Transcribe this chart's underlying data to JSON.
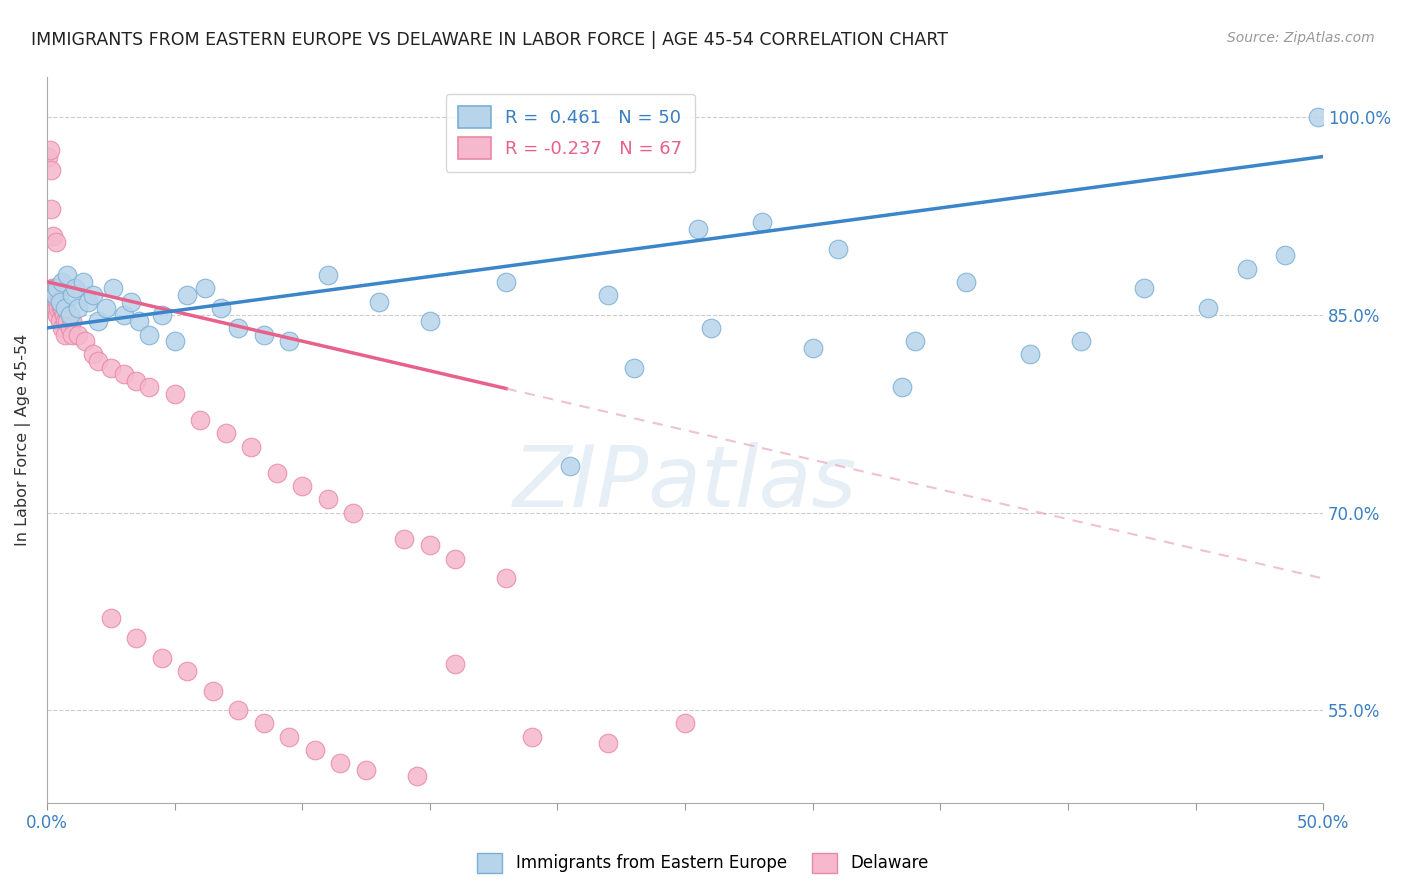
{
  "title": "IMMIGRANTS FROM EASTERN EUROPE VS DELAWARE IN LABOR FORCE | AGE 45-54 CORRELATION CHART",
  "source": "Source: ZipAtlas.com",
  "ylabel": "In Labor Force | Age 45-54",
  "xlim": [
    0.0,
    50.0
  ],
  "ylim": [
    48.0,
    103.0
  ],
  "x_ticks_show": [
    0.0,
    50.0
  ],
  "x_ticks_minor": [
    5.0,
    10.0,
    15.0,
    20.0,
    25.0,
    30.0,
    35.0,
    40.0,
    45.0
  ],
  "y_ticks": [
    55.0,
    70.0,
    85.0,
    100.0
  ],
  "blue_R": 0.461,
  "blue_N": 50,
  "pink_R": -0.237,
  "pink_N": 67,
  "blue_color": "#b8d4ea",
  "pink_color": "#f5b8cc",
  "blue_edge_color": "#7aafd4",
  "pink_edge_color": "#e888aa",
  "blue_line_color": "#3a86c8",
  "pink_line_color": "#e8618a",
  "pink_dash_color": "#e8a8bc",
  "legend_label_blue": "Immigrants from Eastern Europe",
  "legend_label_pink": "Delaware",
  "blue_x": [
    0.3,
    0.4,
    0.5,
    0.6,
    0.7,
    0.8,
    0.9,
    1.0,
    1.1,
    1.2,
    1.4,
    1.6,
    1.8,
    2.0,
    2.3,
    2.6,
    3.0,
    3.3,
    3.6,
    4.0,
    4.5,
    5.0,
    5.5,
    6.2,
    6.8,
    7.5,
    8.5,
    9.5,
    11.0,
    13.0,
    15.0,
    18.0,
    20.5,
    23.0,
    25.5,
    28.0,
    31.0,
    33.5,
    36.0,
    38.5,
    40.5,
    43.0,
    45.5,
    47.0,
    48.5,
    49.8,
    22.0,
    26.0,
    30.0,
    34.0
  ],
  "blue_y": [
    86.5,
    87.0,
    86.0,
    87.5,
    85.5,
    88.0,
    85.0,
    86.5,
    87.0,
    85.5,
    87.5,
    86.0,
    86.5,
    84.5,
    85.5,
    87.0,
    85.0,
    86.0,
    84.5,
    83.5,
    85.0,
    83.0,
    86.5,
    87.0,
    85.5,
    84.0,
    83.5,
    83.0,
    88.0,
    86.0,
    84.5,
    87.5,
    73.5,
    81.0,
    91.5,
    92.0,
    90.0,
    79.5,
    87.5,
    82.0,
    83.0,
    87.0,
    85.5,
    88.5,
    89.5,
    100.0,
    86.5,
    84.0,
    82.5,
    83.0
  ],
  "pink_x": [
    0.05,
    0.1,
    0.1,
    0.15,
    0.15,
    0.2,
    0.2,
    0.25,
    0.25,
    0.3,
    0.3,
    0.35,
    0.35,
    0.4,
    0.4,
    0.45,
    0.5,
    0.5,
    0.55,
    0.6,
    0.6,
    0.65,
    0.7,
    0.7,
    0.8,
    0.9,
    1.0,
    1.0,
    1.2,
    1.5,
    1.8,
    2.0,
    2.5,
    3.0,
    3.5,
    4.0,
    5.0,
    6.0,
    7.0,
    8.0,
    9.0,
    10.0,
    11.0,
    12.0,
    14.0,
    15.0,
    16.0,
    18.0,
    2.5,
    3.5,
    4.5,
    5.5,
    6.5,
    7.5,
    8.5,
    9.5,
    10.5,
    11.5,
    12.5,
    14.5,
    16.0,
    19.0,
    22.0,
    25.0,
    0.15,
    0.25,
    0.35
  ],
  "pink_y": [
    97.0,
    97.5,
    86.5,
    96.0,
    86.0,
    86.5,
    87.0,
    86.5,
    85.5,
    87.0,
    86.0,
    86.5,
    85.5,
    85.0,
    86.0,
    85.5,
    86.0,
    84.5,
    85.5,
    85.5,
    84.0,
    85.0,
    84.5,
    83.5,
    84.5,
    84.0,
    84.5,
    83.5,
    83.5,
    83.0,
    82.0,
    81.5,
    81.0,
    80.5,
    80.0,
    79.5,
    79.0,
    77.0,
    76.0,
    75.0,
    73.0,
    72.0,
    71.0,
    70.0,
    68.0,
    67.5,
    66.5,
    65.0,
    62.0,
    60.5,
    59.0,
    58.0,
    56.5,
    55.0,
    54.0,
    53.0,
    52.0,
    51.0,
    50.5,
    50.0,
    58.5,
    53.0,
    52.5,
    54.0,
    93.0,
    91.0,
    90.5
  ]
}
